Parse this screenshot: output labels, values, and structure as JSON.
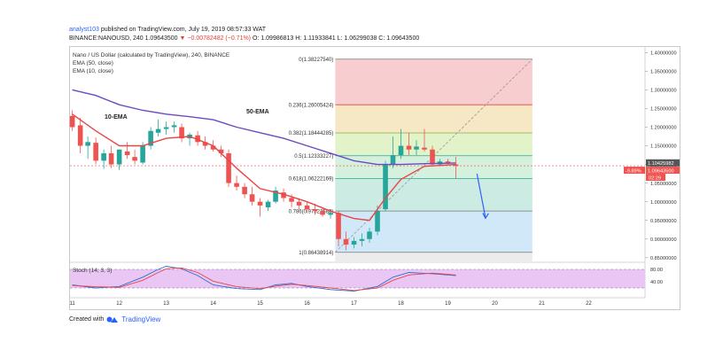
{
  "header": {
    "user": "analyst103",
    "published": "published on TradingView.com, July 19, 2019 08:57:33 WAT",
    "symbol_line_prefix": "BINANCE:NANOUSD, 240",
    "last": "1.09643500",
    "change": "▼ −0.00782482 (−0.71%)",
    "ohlc": "O: 1.09986813  H: 1.11933841  L: 1.06299038  C: 1.09643500"
  },
  "legend": {
    "title": "Nano / US Dollar (calculated by TradingView), 240, BINANCE",
    "ema50": "EMA (50, close)",
    "ema10": "EMA (10, close)"
  },
  "annotations": {
    "ema10": "10-EMA",
    "ema50": "50-EMA"
  },
  "stoch": {
    "label": "Stoch (14, 3, 3)",
    "ticks": [
      "80.00",
      "40.00"
    ]
  },
  "price_axis": {
    "current_price": "1.10425982",
    "change_pct": "-9.89%",
    "last_price": "1.09643500",
    "countdown": "02:29"
  },
  "footer": {
    "created_with": "Created with",
    "brand": "TradingView"
  },
  "colors": {
    "up": "#26a69a",
    "down": "#ef5350",
    "ema50": "#6d4ac3",
    "ema10": "#e84545",
    "stoch_k": "#2b6fd6",
    "stoch_d": "#e84545",
    "arrow": "#2962ff"
  },
  "chart_data": {
    "type": "candlestick",
    "title": "Nano / US Dollar (calculated by TradingView), 240, BINANCE",
    "x_tick_labels": [
      "11",
      "12",
      "13",
      "14",
      "15",
      "16",
      "17",
      "18",
      "19",
      "20",
      "21",
      "22"
    ],
    "y_tick_labels": [
      "1.40000000",
      "1.35000000",
      "1.30000000",
      "1.25000000",
      "1.20000000",
      "1.15000000",
      "1.10000000",
      "1.05000000",
      "1.00000000",
      "0.95000000",
      "0.90000000",
      "0.85000000"
    ],
    "ylim": [
      0.84,
      1.415
    ],
    "x_range": [
      10.95,
      23.2
    ],
    "candles": [
      {
        "t": 11.0,
        "o": 1.23,
        "h": 1.245,
        "l": 1.19,
        "c": 1.2
      },
      {
        "t": 11.17,
        "o": 1.205,
        "h": 1.225,
        "l": 1.13,
        "c": 1.15
      },
      {
        "t": 11.33,
        "o": 1.15,
        "h": 1.175,
        "l": 1.115,
        "c": 1.16
      },
      {
        "t": 11.5,
        "o": 1.158,
        "h": 1.172,
        "l": 1.1,
        "c": 1.11
      },
      {
        "t": 11.67,
        "o": 1.11,
        "h": 1.14,
        "l": 1.088,
        "c": 1.13
      },
      {
        "t": 11.83,
        "o": 1.13,
        "h": 1.15,
        "l": 1.09,
        "c": 1.1
      },
      {
        "t": 12.0,
        "o": 1.1,
        "h": 1.14,
        "l": 1.085,
        "c": 1.14
      },
      {
        "t": 12.17,
        "o": 1.135,
        "h": 1.16,
        "l": 1.115,
        "c": 1.125
      },
      {
        "t": 12.33,
        "o": 1.12,
        "h": 1.14,
        "l": 1.1,
        "c": 1.11
      },
      {
        "t": 12.5,
        "o": 1.105,
        "h": 1.16,
        "l": 1.1,
        "c": 1.15
      },
      {
        "t": 12.67,
        "o": 1.15,
        "h": 1.2,
        "l": 1.14,
        "c": 1.19
      },
      {
        "t": 12.83,
        "o": 1.185,
        "h": 1.22,
        "l": 1.175,
        "c": 1.195
      },
      {
        "t": 13.0,
        "o": 1.195,
        "h": 1.215,
        "l": 1.18,
        "c": 1.2
      },
      {
        "t": 13.17,
        "o": 1.2,
        "h": 1.215,
        "l": 1.185,
        "c": 1.205
      },
      {
        "t": 13.33,
        "o": 1.2,
        "h": 1.21,
        "l": 1.16,
        "c": 1.17
      },
      {
        "t": 13.5,
        "o": 1.17,
        "h": 1.185,
        "l": 1.15,
        "c": 1.18
      },
      {
        "t": 13.67,
        "o": 1.178,
        "h": 1.19,
        "l": 1.15,
        "c": 1.16
      },
      {
        "t": 13.83,
        "o": 1.16,
        "h": 1.175,
        "l": 1.14,
        "c": 1.15
      },
      {
        "t": 14.0,
        "o": 1.15,
        "h": 1.165,
        "l": 1.135,
        "c": 1.14
      },
      {
        "t": 14.17,
        "o": 1.14,
        "h": 1.15,
        "l": 1.12,
        "c": 1.13
      },
      {
        "t": 14.33,
        "o": 1.13,
        "h": 1.14,
        "l": 1.04,
        "c": 1.05
      },
      {
        "t": 14.5,
        "o": 1.05,
        "h": 1.07,
        "l": 1.03,
        "c": 1.04
      },
      {
        "t": 14.67,
        "o": 1.04,
        "h": 1.05,
        "l": 1.01,
        "c": 1.02
      },
      {
        "t": 14.83,
        "o": 1.02,
        "h": 1.04,
        "l": 0.99,
        "c": 1.0
      },
      {
        "t": 15.0,
        "o": 1.0,
        "h": 1.01,
        "l": 0.96,
        "c": 0.99
      },
      {
        "t": 15.17,
        "o": 0.985,
        "h": 1.005,
        "l": 0.975,
        "c": 1.0
      },
      {
        "t": 15.33,
        "o": 1.0,
        "h": 1.04,
        "l": 0.995,
        "c": 1.03
      },
      {
        "t": 15.5,
        "o": 1.025,
        "h": 1.035,
        "l": 1.0,
        "c": 1.01
      },
      {
        "t": 15.67,
        "o": 1.01,
        "h": 1.02,
        "l": 0.985,
        "c": 1.0
      },
      {
        "t": 15.83,
        "o": 1.0,
        "h": 1.01,
        "l": 0.98,
        "c": 0.99
      },
      {
        "t": 16.0,
        "o": 0.99,
        "h": 1.0,
        "l": 0.97,
        "c": 0.98
      },
      {
        "t": 16.17,
        "o": 0.98,
        "h": 0.995,
        "l": 0.965,
        "c": 0.975
      },
      {
        "t": 16.33,
        "o": 0.975,
        "h": 0.985,
        "l": 0.96,
        "c": 0.965
      },
      {
        "t": 16.5,
        "o": 0.965,
        "h": 0.98,
        "l": 0.955,
        "c": 0.97
      },
      {
        "t": 16.67,
        "o": 0.97,
        "h": 0.975,
        "l": 0.88,
        "c": 0.9
      },
      {
        "t": 16.83,
        "o": 0.9,
        "h": 0.92,
        "l": 0.87,
        "c": 0.885
      },
      {
        "t": 17.0,
        "o": 0.885,
        "h": 0.905,
        "l": 0.875,
        "c": 0.895
      },
      {
        "t": 17.17,
        "o": 0.895,
        "h": 0.915,
        "l": 0.88,
        "c": 0.9
      },
      {
        "t": 17.33,
        "o": 0.9,
        "h": 0.93,
        "l": 0.89,
        "c": 0.92
      },
      {
        "t": 17.5,
        "o": 0.92,
        "h": 0.99,
        "l": 0.91,
        "c": 0.975
      },
      {
        "t": 17.67,
        "o": 0.98,
        "h": 1.11,
        "l": 0.975,
        "c": 1.1
      },
      {
        "t": 17.83,
        "o": 1.1,
        "h": 1.175,
        "l": 1.09,
        "c": 1.125
      },
      {
        "t": 18.0,
        "o": 1.125,
        "h": 1.195,
        "l": 1.115,
        "c": 1.15
      },
      {
        "t": 18.17,
        "o": 1.15,
        "h": 1.185,
        "l": 1.125,
        "c": 1.14
      },
      {
        "t": 18.33,
        "o": 1.14,
        "h": 1.165,
        "l": 1.125,
        "c": 1.148
      },
      {
        "t": 18.5,
        "o": 1.145,
        "h": 1.195,
        "l": 1.135,
        "c": 1.14
      },
      {
        "t": 18.67,
        "o": 1.14,
        "h": 1.15,
        "l": 1.095,
        "c": 1.1
      },
      {
        "t": 18.83,
        "o": 1.1,
        "h": 1.115,
        "l": 1.095,
        "c": 1.108
      },
      {
        "t": 19.0,
        "o": 1.108,
        "h": 1.115,
        "l": 1.1,
        "c": 1.105
      },
      {
        "t": 19.17,
        "o": 1.1,
        "h": 1.12,
        "l": 1.063,
        "c": 1.096
      }
    ],
    "series": [
      {
        "name": "EMA (50, close)",
        "points": [
          [
            11.0,
            1.3
          ],
          [
            11.5,
            1.285
          ],
          [
            12.0,
            1.26
          ],
          [
            12.5,
            1.245
          ],
          [
            13.0,
            1.235
          ],
          [
            13.5,
            1.228
          ],
          [
            14.0,
            1.22
          ],
          [
            14.5,
            1.2
          ],
          [
            15.0,
            1.185
          ],
          [
            15.5,
            1.17
          ],
          [
            16.0,
            1.15
          ],
          [
            16.5,
            1.13
          ],
          [
            17.0,
            1.11
          ],
          [
            17.5,
            1.1
          ],
          [
            18.0,
            1.1
          ],
          [
            18.5,
            1.102
          ],
          [
            19.17,
            1.104
          ]
        ]
      },
      {
        "name": "EMA (10, close)",
        "points": [
          [
            11.0,
            1.235
          ],
          [
            11.5,
            1.19
          ],
          [
            12.0,
            1.15
          ],
          [
            12.5,
            1.15
          ],
          [
            13.0,
            1.17
          ],
          [
            13.5,
            1.175
          ],
          [
            14.0,
            1.15
          ],
          [
            14.5,
            1.09
          ],
          [
            15.0,
            1.035
          ],
          [
            15.5,
            1.02
          ],
          [
            16.0,
            1.0
          ],
          [
            16.5,
            0.975
          ],
          [
            17.0,
            0.955
          ],
          [
            17.33,
            0.95
          ],
          [
            17.67,
            1.01
          ],
          [
            18.0,
            1.06
          ],
          [
            18.5,
            1.095
          ],
          [
            19.17,
            1.1
          ]
        ]
      }
    ],
    "fib_levels": [
      {
        "ratio": "0",
        "price": "1.38227540",
        "value": 1.3822754
      },
      {
        "ratio": "0.236",
        "price": "1.26005424",
        "value": 1.26005424
      },
      {
        "ratio": "0.382",
        "price": "1.18444285",
        "value": 1.18444285
      },
      {
        "ratio": "0.5",
        "price": "1.12333227",
        "value": 1.12333227
      },
      {
        "ratio": "0.618",
        "price": "1.06222169",
        "value": 1.06222169
      },
      {
        "ratio": "0.786",
        "price": "0.97521680",
        "value": 0.9752168
      },
      {
        "ratio": "1",
        "price": "0.86438914",
        "value": 0.86438914
      }
    ],
    "fib_range": [
      16.6,
      20.8
    ],
    "fib_band_colors": [
      "#f7cdd0",
      "#f6e7c5",
      "#e3f3c9",
      "#d5f0dd",
      "#ccebe3",
      "#d1e8f8",
      "#ececec"
    ],
    "stochastic": {
      "ylim": [
        0,
        100
      ],
      "k": [
        [
          11.0,
          30
        ],
        [
          11.5,
          20
        ],
        [
          12.0,
          25
        ],
        [
          12.5,
          55
        ],
        [
          12.83,
          80
        ],
        [
          13.0,
          90
        ],
        [
          13.33,
          82
        ],
        [
          13.67,
          60
        ],
        [
          14.0,
          30
        ],
        [
          14.5,
          18
        ],
        [
          15.0,
          15
        ],
        [
          15.33,
          30
        ],
        [
          15.67,
          35
        ],
        [
          16.0,
          25
        ],
        [
          16.5,
          15
        ],
        [
          17.0,
          10
        ],
        [
          17.5,
          25
        ],
        [
          17.83,
          55
        ],
        [
          18.17,
          70
        ],
        [
          18.67,
          66
        ],
        [
          19.17,
          60
        ]
      ],
      "d": [
        [
          11.0,
          28
        ],
        [
          11.5,
          24
        ],
        [
          12.0,
          22
        ],
        [
          12.5,
          45
        ],
        [
          12.83,
          70
        ],
        [
          13.0,
          82
        ],
        [
          13.33,
          85
        ],
        [
          13.67,
          70
        ],
        [
          14.0,
          42
        ],
        [
          14.5,
          24
        ],
        [
          15.0,
          18
        ],
        [
          15.33,
          26
        ],
        [
          15.67,
          32
        ],
        [
          16.0,
          28
        ],
        [
          16.5,
          20
        ],
        [
          17.0,
          12
        ],
        [
          17.5,
          20
        ],
        [
          17.83,
          45
        ],
        [
          18.17,
          62
        ],
        [
          18.67,
          68
        ],
        [
          19.17,
          62
        ]
      ]
    }
  }
}
